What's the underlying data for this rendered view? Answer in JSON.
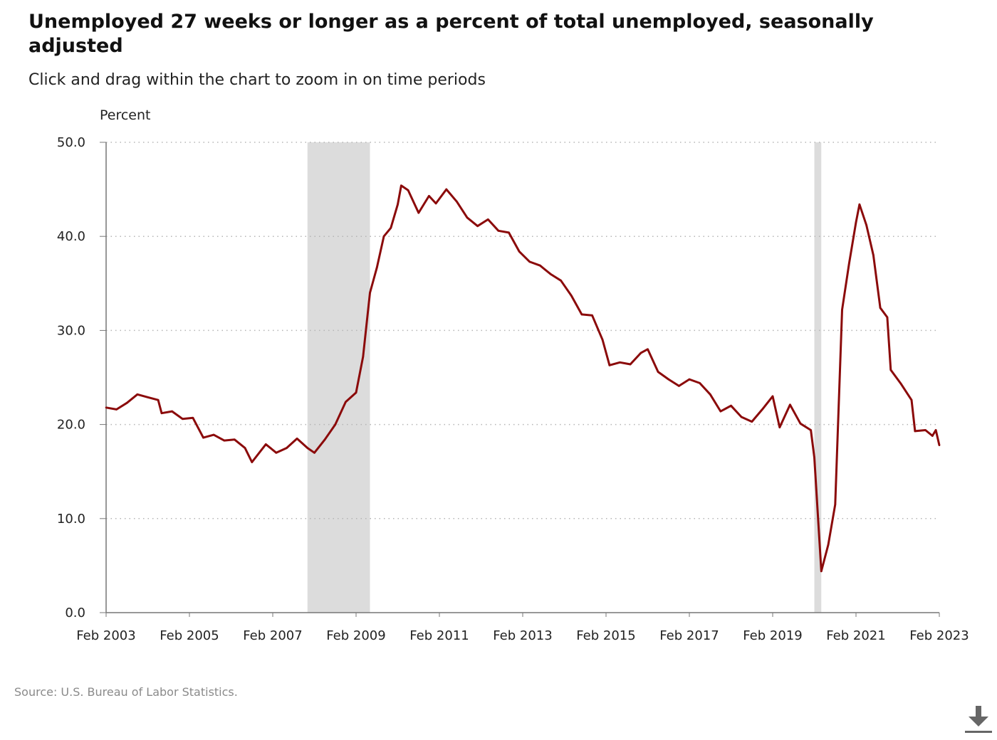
{
  "title": "Unemployed 27 weeks or longer as a percent of total unemployed, seasonally adjusted",
  "subtitle": "Click and drag within the chart to zoom in on time periods",
  "source": "Source: U.S. Bureau of Labor Statistics.",
  "download_icon": "download-icon",
  "colors": {
    "line": "#8b0a0a",
    "recession": "#dcdcdc",
    "grid": "#b5b5b5",
    "axis": "#777777"
  },
  "chart_data": {
    "type": "line",
    "title": "Unemployed 27 weeks or longer as a percent of total unemployed, seasonally adjusted",
    "ylabel": "Percent",
    "xlabel": "",
    "ylim": [
      0,
      50
    ],
    "xlim": [
      "2003-02",
      "2023-02"
    ],
    "yticks": [
      "0.0",
      "10.0",
      "20.0",
      "30.0",
      "40.0",
      "50.0"
    ],
    "yticks_values": [
      0,
      10,
      20,
      30,
      40,
      50
    ],
    "xticks": [
      "Feb 2003",
      "Feb 2005",
      "Feb 2007",
      "Feb 2009",
      "Feb 2011",
      "Feb 2013",
      "Feb 2015",
      "Feb 2017",
      "Feb 2019",
      "Feb 2021",
      "Feb 2023"
    ],
    "xticks_dates": [
      "2003-02",
      "2005-02",
      "2007-02",
      "2009-02",
      "2011-02",
      "2013-02",
      "2015-02",
      "2017-02",
      "2019-02",
      "2021-02",
      "2023-02"
    ],
    "grid": true,
    "recessions": [
      {
        "start": "2007-12",
        "end": "2009-06"
      },
      {
        "start": "2020-02",
        "end": "2020-04"
      }
    ],
    "series": [
      {
        "points": [
          [
            "2003-02",
            21.8
          ],
          [
            "2003-05",
            21.6
          ],
          [
            "2003-08",
            22.3
          ],
          [
            "2003-11",
            23.2
          ],
          [
            "2004-02",
            22.9
          ],
          [
            "2004-05",
            22.6
          ],
          [
            "2004-06",
            21.2
          ],
          [
            "2004-09",
            21.4
          ],
          [
            "2004-12",
            20.6
          ],
          [
            "2005-03",
            20.7
          ],
          [
            "2005-06",
            18.6
          ],
          [
            "2005-09",
            18.9
          ],
          [
            "2005-12",
            18.3
          ],
          [
            "2006-03",
            18.4
          ],
          [
            "2006-06",
            17.5
          ],
          [
            "2006-08",
            16.0
          ],
          [
            "2006-12",
            17.9
          ],
          [
            "2007-03",
            17.0
          ],
          [
            "2007-06",
            17.5
          ],
          [
            "2007-09",
            18.5
          ],
          [
            "2007-12",
            17.5
          ],
          [
            "2008-02",
            17.0
          ],
          [
            "2008-05",
            18.4
          ],
          [
            "2008-08",
            20.0
          ],
          [
            "2008-11",
            22.4
          ],
          [
            "2009-02",
            23.4
          ],
          [
            "2009-04",
            27.2
          ],
          [
            "2009-06",
            34.0
          ],
          [
            "2009-08",
            36.7
          ],
          [
            "2009-10",
            40.0
          ],
          [
            "2009-12",
            40.9
          ],
          [
            "2010-02",
            43.4
          ],
          [
            "2010-03",
            45.4
          ],
          [
            "2010-05",
            44.9
          ],
          [
            "2010-08",
            42.5
          ],
          [
            "2010-11",
            44.3
          ],
          [
            "2011-01",
            43.5
          ],
          [
            "2011-04",
            45.0
          ],
          [
            "2011-07",
            43.7
          ],
          [
            "2011-10",
            42.0
          ],
          [
            "2012-01",
            41.1
          ],
          [
            "2012-04",
            41.8
          ],
          [
            "2012-07",
            40.6
          ],
          [
            "2012-10",
            40.4
          ],
          [
            "2013-01",
            38.4
          ],
          [
            "2013-04",
            37.3
          ],
          [
            "2013-07",
            36.9
          ],
          [
            "2013-10",
            36.0
          ],
          [
            "2014-01",
            35.3
          ],
          [
            "2014-04",
            33.7
          ],
          [
            "2014-07",
            31.7
          ],
          [
            "2014-10",
            31.6
          ],
          [
            "2015-01",
            29.0
          ],
          [
            "2015-03",
            26.3
          ],
          [
            "2015-06",
            26.6
          ],
          [
            "2015-09",
            26.4
          ],
          [
            "2015-12",
            27.6
          ],
          [
            "2016-02",
            28.0
          ],
          [
            "2016-05",
            25.6
          ],
          [
            "2016-08",
            24.8
          ],
          [
            "2016-11",
            24.1
          ],
          [
            "2017-02",
            24.8
          ],
          [
            "2017-05",
            24.4
          ],
          [
            "2017-08",
            23.2
          ],
          [
            "2017-11",
            21.4
          ],
          [
            "2018-02",
            22.0
          ],
          [
            "2018-05",
            20.8
          ],
          [
            "2018-08",
            20.3
          ],
          [
            "2018-11",
            21.6
          ],
          [
            "2019-02",
            23.0
          ],
          [
            "2019-04",
            19.7
          ],
          [
            "2019-07",
            22.1
          ],
          [
            "2019-10",
            20.1
          ],
          [
            "2020-01",
            19.4
          ],
          [
            "2020-02",
            16.5
          ],
          [
            "2020-04",
            4.4
          ],
          [
            "2020-06",
            7.2
          ],
          [
            "2020-08",
            11.5
          ],
          [
            "2020-10",
            32.2
          ],
          [
            "2020-12",
            37.1
          ],
          [
            "2021-02",
            41.5
          ],
          [
            "2021-03",
            43.4
          ],
          [
            "2021-05",
            41.2
          ],
          [
            "2021-07",
            38.0
          ],
          [
            "2021-09",
            32.4
          ],
          [
            "2021-11",
            31.4
          ],
          [
            "2021-12",
            25.8
          ],
          [
            "2022-03",
            24.3
          ],
          [
            "2022-06",
            22.6
          ],
          [
            "2022-07",
            19.3
          ],
          [
            "2022-10",
            19.4
          ],
          [
            "2022-12",
            18.8
          ],
          [
            "2023-01",
            19.4
          ],
          [
            "2023-02",
            17.8
          ]
        ]
      }
    ]
  }
}
